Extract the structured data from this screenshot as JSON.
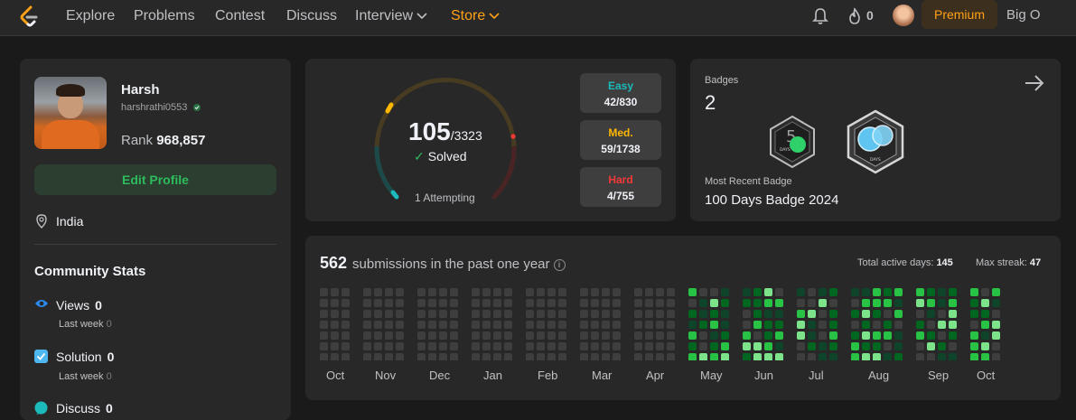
{
  "nav": {
    "links": [
      "Explore",
      "Problems",
      "Contest",
      "Discuss",
      "Interview",
      "Store"
    ],
    "streak_count": "0",
    "premium_label": "Premium",
    "bigo_label": "Big O"
  },
  "profile": {
    "name": "Harsh",
    "handle": "harshrathi0553",
    "rank_label": "Rank",
    "rank_value": "968,857",
    "edit_label": "Edit Profile",
    "location": "India",
    "community_title": "Community Stats",
    "stats": [
      {
        "label": "Views",
        "value": "0",
        "sub": "Last week",
        "sub_value": "0",
        "icon": "eye-icon"
      },
      {
        "label": "Solution",
        "value": "0",
        "sub": "Last week",
        "sub_value": "0",
        "icon": "check-square-icon"
      },
      {
        "label": "Discuss",
        "value": "0",
        "icon": "chat-icon"
      }
    ]
  },
  "progress": {
    "solved": "105",
    "total": "/3323",
    "solved_label": "Solved",
    "attempting": "1 Attempting",
    "difficulties": [
      {
        "label": "Easy",
        "value": "42/830",
        "color": "#1cbaba"
      },
      {
        "label": "Med.",
        "value": "59/1738",
        "color": "#ffb700"
      },
      {
        "label": "Hard",
        "value": "4/755",
        "color": "#f63737"
      }
    ]
  },
  "badges": {
    "title": "Badges",
    "count": "2",
    "recent_label": "Most Recent Badge",
    "recent_name": "100 Days Badge 2024",
    "badge_texts": [
      "DAYS",
      "DAYS"
    ]
  },
  "submissions": {
    "count": "562",
    "label": "submissions in the past one year",
    "active_label": "Total active days:",
    "active_value": "145",
    "streak_label": "Max streak:",
    "streak_value": "47",
    "months": [
      "Oct",
      "Nov",
      "Dec",
      "Jan",
      "Feb",
      "Mar",
      "Apr",
      "May",
      "Jun",
      "Jul",
      "Aug",
      "Sep",
      "Oct"
    ]
  },
  "colors": {
    "accent": "#ffa116",
    "green": "#2cbb5d",
    "easy": "#1cbaba",
    "medium": "#ffb700",
    "hard": "#f63737"
  }
}
